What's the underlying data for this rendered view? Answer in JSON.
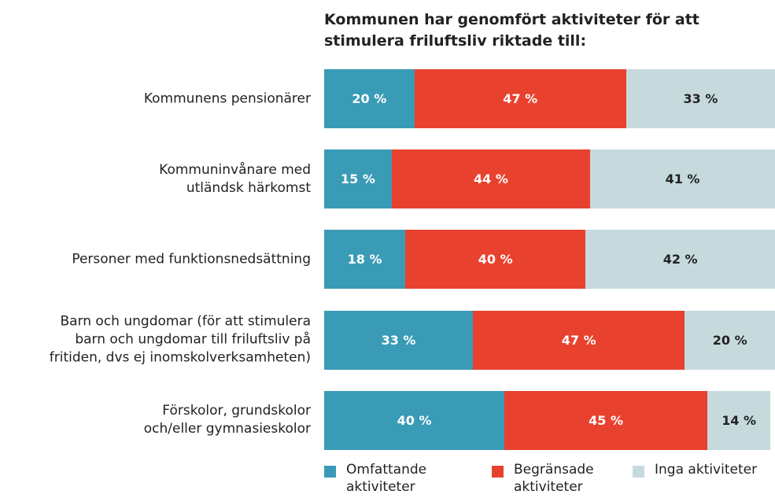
{
  "chart_data": {
    "type": "stacked-bar-horizontal",
    "title": "Kommunen har genomfört aktiviteter för att\nstimulera friluftsliv riktade till:",
    "categories": [
      "Kommunens pensionärer",
      "Kommuninvånare med\nutländsk härkomst",
      "Personer med funktionsnedsättning",
      "Barn och ungdomar (för att stimulera\nbarn och ungdomar till friluftsliv på\nfritiden, dvs ej inomskolverksamheten)",
      "Förskolor, grundskolor\noch/eller gymnasieskolor"
    ],
    "xlim": [
      0,
      100
    ],
    "series": [
      {
        "name": "Omfattande\naktiviteter",
        "color": "#3a9bb6",
        "text_color": "#ffffff",
        "values": [
          20,
          15,
          18,
          33,
          40
        ],
        "value_labels": [
          "20 %",
          "15 %",
          "18 %",
          "33 %",
          "40 %"
        ]
      },
      {
        "name": "Begränsade\naktiviteter",
        "color": "#e8422f",
        "text_color": "#ffffff",
        "values": [
          47,
          44,
          40,
          47,
          45
        ],
        "value_labels": [
          "47 %",
          "44 %",
          "40 %",
          "47 %",
          "45 %"
        ]
      },
      {
        "name": "Inga aktiviteter",
        "color": "#c6dade",
        "text_color": "#222222",
        "values": [
          33,
          41,
          42,
          20,
          14
        ],
        "value_labels": [
          "33 %",
          "41 %",
          "42 %",
          "20 %",
          "14 %"
        ]
      }
    ],
    "legend": "bottom"
  }
}
